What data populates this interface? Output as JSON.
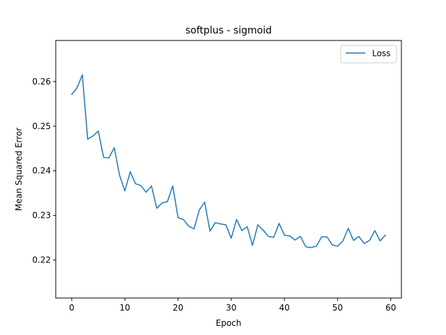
{
  "chart_data": {
    "type": "line",
    "title": "softplus - sigmoid",
    "xlabel": "Epoch",
    "ylabel": "Mean Squared Error",
    "xlim": [
      -3,
      62
    ],
    "ylim": [
      0.2115,
      0.2692
    ],
    "xticks": [
      0,
      10,
      20,
      30,
      40,
      50,
      60
    ],
    "yticks": [
      0.22,
      0.23,
      0.24,
      0.25,
      0.26
    ],
    "ytick_labels": [
      "0.22",
      "0.23",
      "0.24",
      "0.25",
      "0.26"
    ],
    "grid": false,
    "legend_position": "top-right",
    "series": [
      {
        "name": "Loss",
        "color": "#1f77b4",
        "x": [
          0,
          1,
          2,
          3,
          4,
          5,
          6,
          7,
          8,
          9,
          10,
          11,
          12,
          13,
          14,
          15,
          16,
          17,
          18,
          19,
          20,
          21,
          22,
          23,
          24,
          25,
          26,
          27,
          28,
          29,
          30,
          31,
          32,
          33,
          34,
          35,
          36,
          37,
          38,
          39,
          40,
          41,
          42,
          43,
          44,
          45,
          46,
          47,
          48,
          49,
          50,
          51,
          52,
          53,
          54,
          55,
          56,
          57,
          58,
          59
        ],
        "values": [
          0.2571,
          0.2586,
          0.2615,
          0.2471,
          0.2478,
          0.2489,
          0.243,
          0.2429,
          0.2452,
          0.239,
          0.2355,
          0.2398,
          0.2371,
          0.2367,
          0.2352,
          0.2366,
          0.2316,
          0.2328,
          0.2331,
          0.2366,
          0.2295,
          0.2291,
          0.2276,
          0.227,
          0.2312,
          0.233,
          0.2265,
          0.2284,
          0.2281,
          0.2279,
          0.2249,
          0.2291,
          0.2266,
          0.2275,
          0.2233,
          0.2279,
          0.2267,
          0.2253,
          0.2251,
          0.2282,
          0.2256,
          0.2254,
          0.2245,
          0.2253,
          0.223,
          0.2228,
          0.2231,
          0.2252,
          0.2252,
          0.2234,
          0.2231,
          0.2243,
          0.2271,
          0.2244,
          0.2253,
          0.2237,
          0.2244,
          0.2266,
          0.2243,
          0.2256
        ]
      }
    ]
  }
}
